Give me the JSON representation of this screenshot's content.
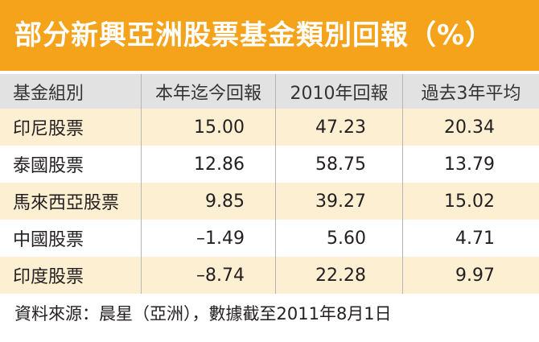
{
  "header": {
    "title": "部分新興亞洲股票基金類別回報（%）"
  },
  "table": {
    "columns": [
      "基金組別",
      "本年迄今回報",
      "2010年回報",
      "過去3年平均"
    ],
    "rows": [
      [
        "印尼股票",
        "15.00",
        "47.23",
        "20.34"
      ],
      [
        "泰國股票",
        "12.86",
        "58.75",
        "13.79"
      ],
      [
        "馬來西亞股票",
        "9.85",
        "39.27",
        "15.02"
      ],
      [
        "中國股票",
        "–1.49",
        "5.60",
        "4.71"
      ],
      [
        "印度股票",
        "–8.74",
        "22.28",
        "9.97"
      ]
    ]
  },
  "footer": {
    "source": "資料來源：晨星（亞洲），數據截至2011年8月1日"
  }
}
